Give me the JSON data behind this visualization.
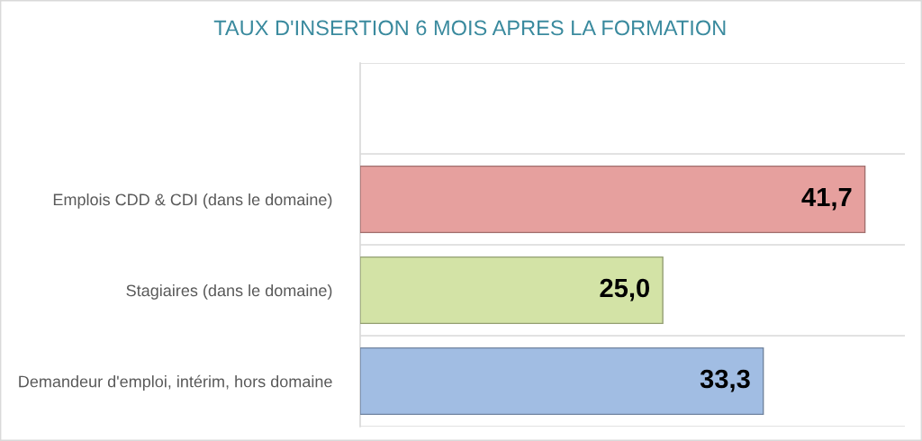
{
  "chart_data": {
    "type": "bar",
    "orientation": "horizontal",
    "title": "TAUX D'INSERTION 6 MOIS APRES LA FORMATION",
    "categories": [
      null,
      "Emplois CDD & CDI (dans le domaine)",
      "Stagiaires (dans le domaine)",
      "Demandeur d'emploi, intérim, hors domaine"
    ],
    "values": [
      null,
      41.7,
      25.0,
      33.3
    ],
    "colors": [
      null,
      "#e6a09e",
      "#d3e3a6",
      "#a1bde3"
    ],
    "value_labels": [
      null,
      "41,7",
      "25,0",
      "33,3"
    ],
    "xlim": [
      0,
      45
    ],
    "grid": "y",
    "tick_labels": "y",
    "legend": false
  }
}
